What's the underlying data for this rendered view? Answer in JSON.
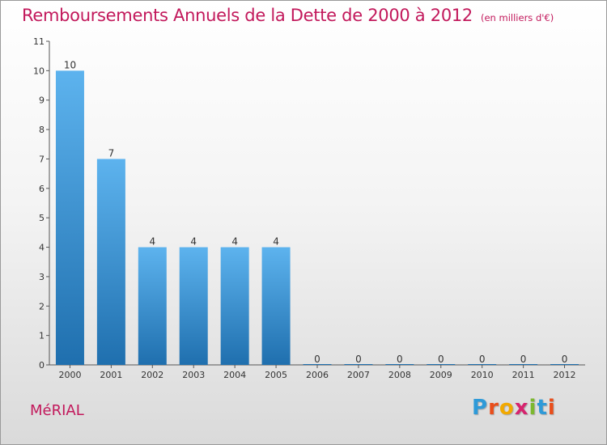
{
  "header": {
    "title": "Remboursements Annuels de la Dette de 2000 à 2012",
    "unit": "(en milliers d'€)"
  },
  "footer": {
    "city": "MéRIAL",
    "logo_text": "Proxiti",
    "logo_letters": [
      {
        "char": "P",
        "color": "#2e9ad8"
      },
      {
        "char": "r",
        "color": "#e94e1b"
      },
      {
        "char": "o",
        "color": "#f2a900"
      },
      {
        "char": "x",
        "color": "#d6246e"
      },
      {
        "char": "i",
        "color": "#7cb82f"
      },
      {
        "char": "t",
        "color": "#2e9ad8"
      },
      {
        "char": "i",
        "color": "#e94e1b"
      }
    ]
  },
  "colors": {
    "bar_top": "#5db3ee",
    "bar_bottom": "#1f6fae",
    "accent": "#c2185b"
  },
  "chart_data": {
    "type": "bar",
    "categories": [
      "2000",
      "2001",
      "2002",
      "2003",
      "2004",
      "2005",
      "2006",
      "2007",
      "2008",
      "2009",
      "2010",
      "2011",
      "2012"
    ],
    "values": [
      10,
      7,
      4,
      4,
      4,
      4,
      0,
      0,
      0,
      0,
      0,
      0,
      0
    ],
    "ylim": [
      0,
      11
    ],
    "yticks": [
      0,
      1,
      2,
      3,
      4,
      5,
      6,
      7,
      8,
      9,
      10,
      11
    ],
    "grid": false
  }
}
